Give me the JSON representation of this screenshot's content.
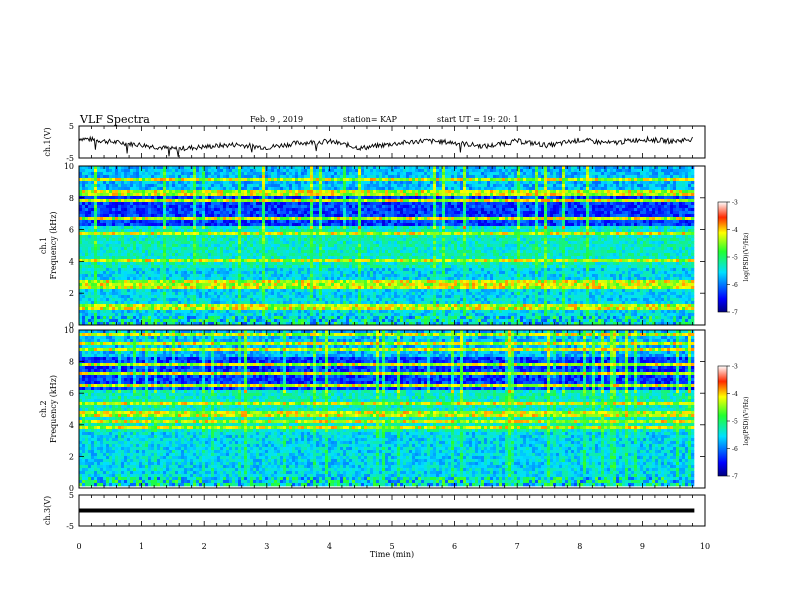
{
  "header": {
    "title": "VLF Spectra",
    "date": "Feb. 9 , 2019",
    "station": "station= KAP",
    "start": "start  UT =   19: 20: 1"
  },
  "chart_data": [
    {
      "type": "line",
      "title": "",
      "ylabel": "ch.1(V)",
      "ylim": [
        -5,
        5
      ],
      "yticks": [
        "5",
        "-5"
      ],
      "xlim": [
        0,
        10
      ],
      "series": [
        {
          "values_note_free": true,
          "x": [
            0,
            0.5,
            1,
            1.5,
            2,
            2.5,
            3,
            3.5,
            4,
            4.5,
            5,
            5.5,
            6,
            6.5,
            7,
            7.5,
            8,
            8.5,
            9,
            9.5,
            9.8
          ],
          "y": [
            1.2,
            0.1,
            -0.9,
            -2.2,
            -1.5,
            -0.8,
            -1.7,
            -0.3,
            0.2,
            -1.9,
            -0.6,
            0.4,
            -0.2,
            -1.4,
            0.3,
            -1.1,
            0.6,
            -0.4,
            0.9,
            0.2,
            1.0
          ]
        }
      ]
    },
    {
      "type": "heatmap",
      "title": "",
      "ylabel": "ch.1",
      "ylabel2": "Frequency (kHz)",
      "ylim": [
        0,
        10
      ],
      "yticks": [
        "0",
        "2",
        "4",
        "6",
        "8",
        "10"
      ],
      "xlim": [
        0,
        10
      ],
      "xmax_data": 9.83,
      "colorbar": {
        "label": "log(PSD)(V²/Hz)",
        "range": [
          -7,
          -3
        ],
        "ticks": [
          "-3",
          "-4",
          "-5",
          "-6",
          "-7"
        ]
      }
    },
    {
      "type": "heatmap",
      "title": "",
      "ylabel": "ch.2",
      "ylabel2": "Frequency (kHz)",
      "ylim": [
        0,
        10
      ],
      "yticks": [
        "0",
        "2",
        "4",
        "6",
        "8",
        "10"
      ],
      "xlim": [
        0,
        10
      ],
      "xmax_data": 9.83,
      "colorbar": {
        "label": "log(PSD)(V²/Hz)",
        "range": [
          -7,
          -3
        ],
        "ticks": [
          "-3",
          "-4",
          "-5",
          "-6",
          "-7"
        ]
      }
    },
    {
      "type": "line",
      "title": "",
      "ylabel": "ch.3(V)",
      "ylim": [
        -5,
        5
      ],
      "yticks": [
        "5",
        "-5"
      ],
      "xlim": [
        0,
        10
      ],
      "series": [
        {
          "x": [
            0,
            9.83
          ],
          "y": [
            0,
            0
          ]
        }
      ]
    }
  ],
  "xaxis": {
    "label": "Time (min)",
    "ticks": [
      "0",
      "1",
      "2",
      "3",
      "4",
      "5",
      "6",
      "7",
      "8",
      "9",
      "10"
    ]
  }
}
